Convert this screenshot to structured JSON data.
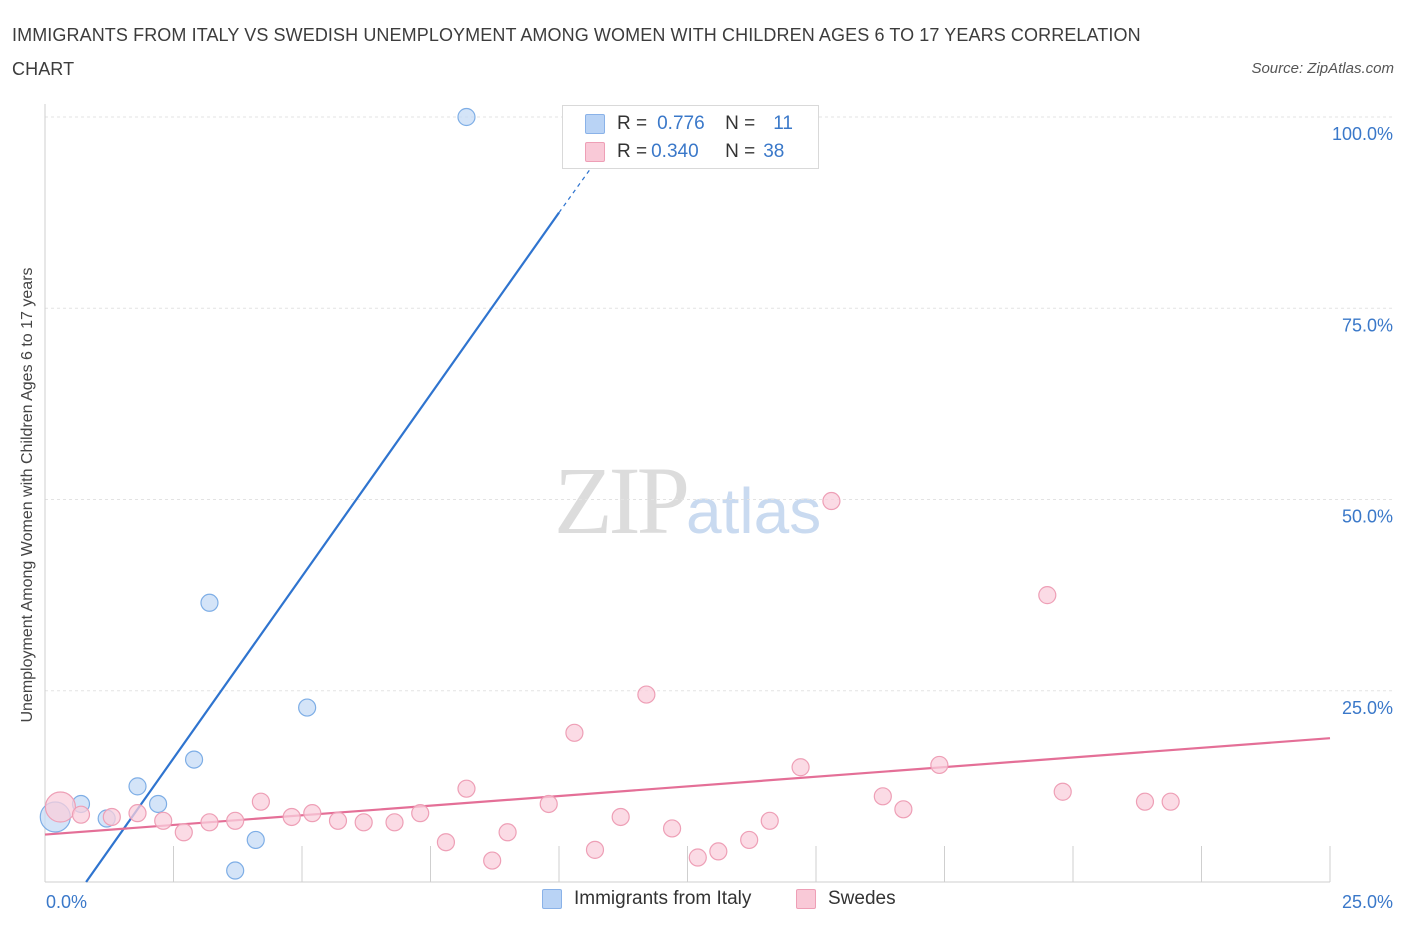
{
  "title": "IMMIGRANTS FROM ITALY VS SWEDISH UNEMPLOYMENT AMONG WOMEN WITH CHILDREN AGES 6 TO 17 YEARS CORRELATION CHART",
  "source": "Source: ZipAtlas.com",
  "watermark": {
    "zip": "ZIP",
    "atlas": "atlas"
  },
  "legend": {
    "rows": [
      {
        "r_label": "R =",
        "r_value": "0.776",
        "n_label": "N =",
        "n_value": "11",
        "color": "#b9d3f5",
        "border": "#8ab2e8"
      },
      {
        "r_label": "R =",
        "r_value": "0.340",
        "n_label": "N =",
        "n_value": "38",
        "color": "#f9c9d7",
        "border": "#ee9fb6"
      }
    ]
  },
  "bottom_legend": [
    {
      "label": "Immigrants from Italy",
      "color": "#b9d3f5",
      "border": "#8ab2e8"
    },
    {
      "label": "Swedes",
      "color": "#f9c9d7",
      "border": "#ee9fb6"
    }
  ],
  "chart_data": {
    "type": "scatter",
    "title": "IMMIGRANTS FROM ITALY VS SWEDISH UNEMPLOYMENT AMONG WOMEN WITH CHILDREN AGES 6 TO 17 YEARS CORRELATION CHART",
    "xlabel": "",
    "ylabel": "Unemployment Among Women with Children Ages 6 to 17 years",
    "xlim": [
      0,
      25
    ],
    "ylim": [
      0,
      100
    ],
    "x_tick_labels": [
      "0.0%",
      "25.0%"
    ],
    "y_tick_values": [
      25,
      50,
      75,
      100
    ],
    "y_tick_labels": [
      "25.0%",
      "50.0%",
      "75.0%",
      "100.0%"
    ],
    "grid": true,
    "legend_position": "top-center",
    "series": [
      {
        "name": "Immigrants from Italy",
        "color": "#7eaee6",
        "fill": "#c5dbf6",
        "line_color": "#2f74cf",
        "trend": {
          "x0": 0.8,
          "y0": 0,
          "x1": 10.0,
          "y1": 87.5,
          "dash_to_x": 10.8,
          "dash_to_y": 95
        },
        "points": [
          {
            "x": 0.2,
            "y": 8.5,
            "size": "large"
          },
          {
            "x": 0.7,
            "y": 10.2
          },
          {
            "x": 1.2,
            "y": 8.3
          },
          {
            "x": 1.8,
            "y": 12.5
          },
          {
            "x": 2.2,
            "y": 10.2
          },
          {
            "x": 2.9,
            "y": 16.0
          },
          {
            "x": 3.2,
            "y": 36.5
          },
          {
            "x": 3.7,
            "y": 1.5
          },
          {
            "x": 4.1,
            "y": 5.5
          },
          {
            "x": 5.1,
            "y": 22.8
          },
          {
            "x": 8.2,
            "y": 100.0
          }
        ]
      },
      {
        "name": "Swedes",
        "color": "#ee9fb6",
        "fill": "#f9cfdc",
        "line_color": "#e46f97",
        "trend": {
          "x0": 0,
          "y0": 6.2,
          "x1": 25.0,
          "y1": 18.8
        },
        "points": [
          {
            "x": 0.3,
            "y": 9.8,
            "size": "large"
          },
          {
            "x": 0.7,
            "y": 8.8
          },
          {
            "x": 1.3,
            "y": 8.5
          },
          {
            "x": 1.8,
            "y": 9.0
          },
          {
            "x": 2.3,
            "y": 8.0
          },
          {
            "x": 2.7,
            "y": 6.5
          },
          {
            "x": 3.2,
            "y": 7.8
          },
          {
            "x": 3.7,
            "y": 8.0
          },
          {
            "x": 4.2,
            "y": 10.5
          },
          {
            "x": 4.8,
            "y": 8.5
          },
          {
            "x": 5.2,
            "y": 9.0
          },
          {
            "x": 5.7,
            "y": 8.0
          },
          {
            "x": 6.2,
            "y": 7.8
          },
          {
            "x": 6.8,
            "y": 7.8
          },
          {
            "x": 7.3,
            "y": 9.0
          },
          {
            "x": 7.8,
            "y": 5.2
          },
          {
            "x": 8.2,
            "y": 12.2
          },
          {
            "x": 8.7,
            "y": 2.8
          },
          {
            "x": 9.0,
            "y": 6.5
          },
          {
            "x": 9.8,
            "y": 10.2
          },
          {
            "x": 10.3,
            "y": 19.5
          },
          {
            "x": 10.7,
            "y": 4.2
          },
          {
            "x": 11.2,
            "y": 8.5
          },
          {
            "x": 11.7,
            "y": 24.5
          },
          {
            "x": 12.2,
            "y": 7.0
          },
          {
            "x": 12.7,
            "y": 3.2
          },
          {
            "x": 13.1,
            "y": 4.0
          },
          {
            "x": 13.7,
            "y": 5.5
          },
          {
            "x": 14.1,
            "y": 8.0
          },
          {
            "x": 14.7,
            "y": 15.0
          },
          {
            "x": 15.3,
            "y": 49.8
          },
          {
            "x": 16.3,
            "y": 11.2
          },
          {
            "x": 16.7,
            "y": 9.5
          },
          {
            "x": 17.4,
            "y": 15.3
          },
          {
            "x": 19.5,
            "y": 37.5
          },
          {
            "x": 19.8,
            "y": 11.8
          },
          {
            "x": 21.4,
            "y": 10.5
          },
          {
            "x": 21.9,
            "y": 10.5
          }
        ]
      }
    ]
  }
}
